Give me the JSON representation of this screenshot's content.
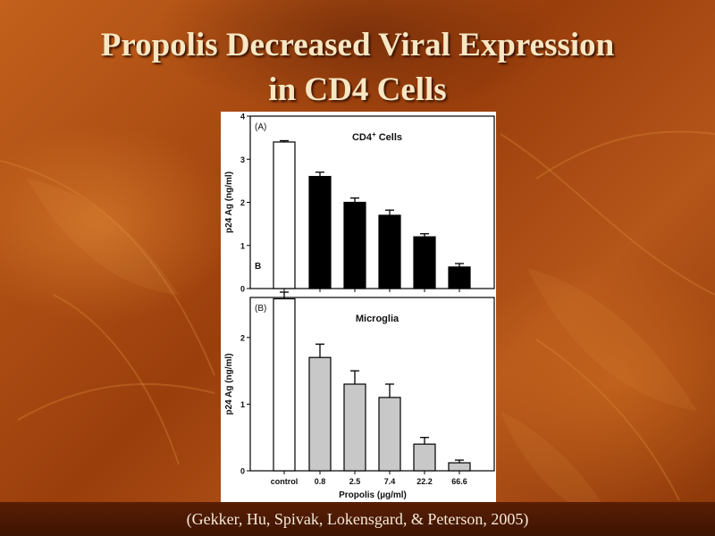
{
  "slide": {
    "title_line1": "Propolis Decreased Viral Expression",
    "title_line2": "in CD4 Cells",
    "citation": "(Gekker, Hu, Spivak, Lokensgard, & Peterson, 2005)",
    "colors": {
      "background": "#a84a10",
      "title": "#f7e7c3",
      "footer": "#3d1402"
    }
  },
  "chart_data": [
    {
      "type": "bar",
      "panel_label": "(A)",
      "corner_label": "B",
      "title": "CD4",
      "title_superscript": "+",
      "title_suffix": " Cells",
      "ylabel": "p24 Ag (ng/ml)",
      "ylim": [
        0,
        4
      ],
      "yticks": [
        0,
        1,
        2,
        3,
        4
      ],
      "categories": [
        "control",
        "0.8",
        "2.5",
        "7.4",
        "22.2",
        "66.6"
      ],
      "values": [
        3.4,
        2.6,
        2.0,
        1.7,
        1.2,
        0.5
      ],
      "errors": [
        0.03,
        0.1,
        0.1,
        0.12,
        0.07,
        0.08
      ],
      "bar_colors": [
        "#ffffff",
        "#000000",
        "#000000",
        "#000000",
        "#000000",
        "#000000"
      ]
    },
    {
      "type": "bar",
      "panel_label": "(B)",
      "title": "Microglia",
      "ylabel": "p24 Ag (ng/ml)",
      "xlabel": "Propolis (µg/ml)",
      "ylim": [
        0,
        2.6
      ],
      "yticks": [
        0,
        1,
        2
      ],
      "categories": [
        "control",
        "0.8",
        "2.5",
        "7.4",
        "22.2",
        "66.6"
      ],
      "values": [
        2.58,
        1.7,
        1.3,
        1.1,
        0.4,
        0.12
      ],
      "errors": [
        0.1,
        0.2,
        0.2,
        0.2,
        0.1,
        0.04
      ],
      "bar_colors": [
        "#ffffff",
        "#c8c8c8",
        "#c8c8c8",
        "#c8c8c8",
        "#c8c8c8",
        "#c8c8c8"
      ]
    }
  ]
}
